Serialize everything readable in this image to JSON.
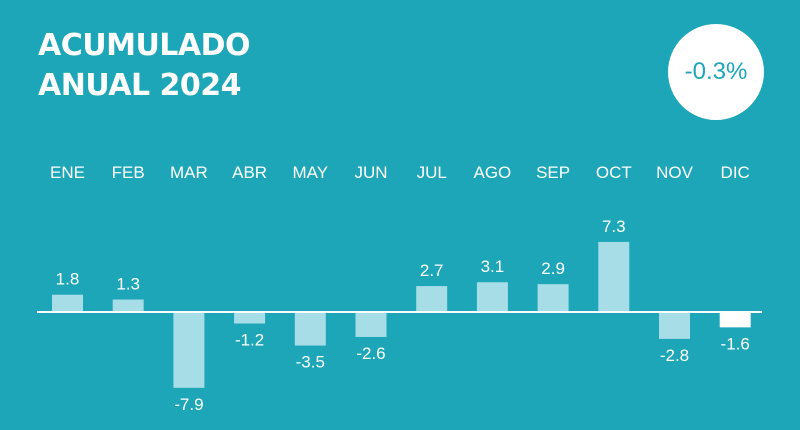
{
  "title": {
    "line1": "ACUMULADO",
    "line2": "ANUAL 2024"
  },
  "badge": {
    "value": "-0.3%"
  },
  "colors": {
    "background": "#1ca6b8",
    "bar": "#a6dde6",
    "bar_highlight": "#ffffff",
    "axis": "#ffffff",
    "text": "#ffffff"
  },
  "chart_data": {
    "type": "bar",
    "title": "ACUMULADO ANUAL 2024",
    "categories": [
      "ENE",
      "FEB",
      "MAR",
      "ABR",
      "MAY",
      "JUN",
      "JUL",
      "AGO",
      "SEP",
      "OCT",
      "NOV",
      "DIC"
    ],
    "values": [
      1.8,
      1.3,
      -7.9,
      -1.2,
      -3.5,
      -2.6,
      2.7,
      3.1,
      2.9,
      7.3,
      -2.8,
      -1.6
    ],
    "data_labels": [
      "1.8",
      "1.3",
      "-7.9",
      "-1.2",
      "-3.5",
      "-2.6",
      "2.7",
      "3.1",
      "2.9",
      "7.3",
      "-2.8",
      "-1.6"
    ],
    "highlight_category": "DIC",
    "xlabel": "",
    "ylabel": "",
    "grid": false,
    "legend": "none"
  }
}
